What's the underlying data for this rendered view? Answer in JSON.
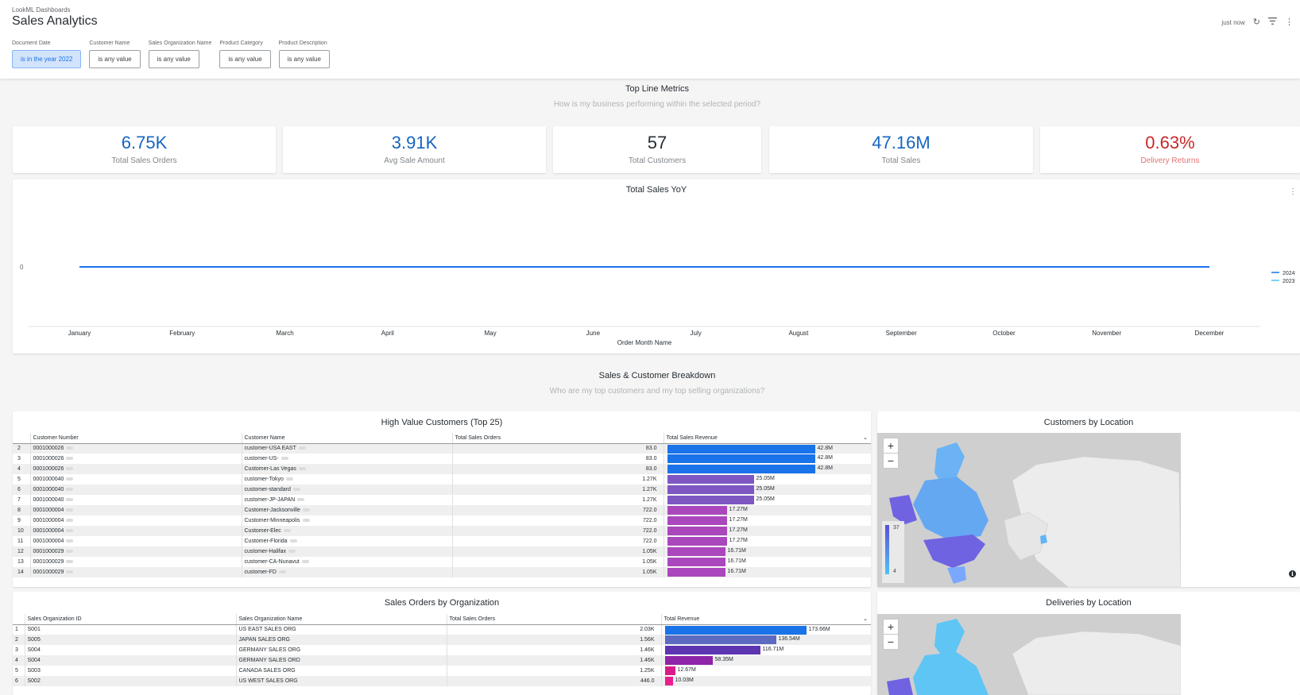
{
  "header": {
    "folder": "LookML Dashboards",
    "title": "Sales Analytics",
    "last_run": "just now",
    "refresh_icon": "refresh-icon",
    "filter_icon": "filter-icon",
    "menu_icon": "more-vert-icon"
  },
  "filters": [
    {
      "label": "Document Date",
      "value": "is in the year 2022",
      "active": true
    },
    {
      "label": "Customer Name",
      "value": "is any value",
      "active": false
    },
    {
      "label": "Sales Organization Name",
      "value": "is any value",
      "active": false
    },
    {
      "label": "Product Category",
      "value": "is any value",
      "active": false
    },
    {
      "label": "Product Description",
      "value": "is any value",
      "active": false
    }
  ],
  "sections": {
    "top_line": {
      "title": "Top Line Metrics",
      "subtitle": "How is my business performing within the selected period?"
    },
    "breakdown": {
      "title": "Sales & Customer Breakdown",
      "subtitle": "Who are my top customers and my top selling organizations?"
    }
  },
  "kpis": [
    {
      "value": "6.75K",
      "label": "Total Sales Orders",
      "style": "blue"
    },
    {
      "value": "3.91K",
      "label": "Avg Sale Amount",
      "style": "blue"
    },
    {
      "value": "57",
      "label": "Total Customers",
      "style": "dark"
    },
    {
      "value": "47.16M",
      "label": "Total Sales",
      "style": "blue"
    },
    {
      "value": "0.63%",
      "label": "Delivery Returns",
      "style": "red"
    }
  ],
  "yoy_chart": {
    "title": "Total Sales YoY",
    "xlabel": "Order Month Name",
    "y_tick": "0",
    "chart_data": {
      "type": "line",
      "categories": [
        "January",
        "February",
        "March",
        "April",
        "May",
        "June",
        "July",
        "August",
        "September",
        "October",
        "November",
        "December"
      ],
      "series": [
        {
          "name": "2024",
          "values": [
            0,
            0,
            0,
            0,
            0,
            0,
            0,
            0,
            0,
            0,
            0,
            0
          ],
          "color": "#1a73e8"
        },
        {
          "name": "2023",
          "values": [
            0,
            0,
            0,
            0,
            0,
            0,
            0,
            0,
            0,
            0,
            0,
            0
          ],
          "color": "#4fc3f7"
        }
      ],
      "title": "Total Sales YoY",
      "xlabel": "Order Month Name",
      "ylabel": "",
      "legend": "right"
    }
  },
  "customers_table": {
    "title": "High Value Customers (Top 25)",
    "columns": [
      "Customer Number",
      "Customer Name",
      "Total Sales Orders",
      "Total Sales Revenue"
    ],
    "sort_icon": "chevron-down-icon",
    "rows": [
      {
        "idx": "2",
        "number": "0001000026",
        "name": "customer-USA EAST",
        "orders": "83.0",
        "revenue": "42.8M",
        "frac": 1.0,
        "color": "#1a73e8"
      },
      {
        "idx": "3",
        "number": "0001000026",
        "name": "customer-US-",
        "orders": "83.0",
        "revenue": "42.8M",
        "frac": 1.0,
        "color": "#1a73e8"
      },
      {
        "idx": "4",
        "number": "0001000026",
        "name": "Customer-Las Vegas",
        "orders": "83.0",
        "revenue": "42.8M",
        "frac": 1.0,
        "color": "#1a73e8"
      },
      {
        "idx": "5",
        "number": "0001000040",
        "name": "customer-Tokyo",
        "orders": "1.27K",
        "revenue": "25.05M",
        "frac": 0.585,
        "color": "#7e57c2"
      },
      {
        "idx": "6",
        "number": "0001000040",
        "name": "customer-standard",
        "orders": "1.27K",
        "revenue": "25.05M",
        "frac": 0.585,
        "color": "#7e57c2"
      },
      {
        "idx": "7",
        "number": "0001000040",
        "name": "customer-JP-JAPAN",
        "orders": "1.27K",
        "revenue": "25.05M",
        "frac": 0.585,
        "color": "#7e57c2"
      },
      {
        "idx": "8",
        "number": "0001000004",
        "name": "Customer-Jacksonville",
        "orders": "722.0",
        "revenue": "17.27M",
        "frac": 0.403,
        "color": "#ab47bc"
      },
      {
        "idx": "9",
        "number": "0001000004",
        "name": "Customer-Minneapolis",
        "orders": "722.0",
        "revenue": "17.27M",
        "frac": 0.403,
        "color": "#ab47bc"
      },
      {
        "idx": "10",
        "number": "0001000004",
        "name": "Customer-Elec",
        "orders": "722.0",
        "revenue": "17.27M",
        "frac": 0.403,
        "color": "#ab47bc"
      },
      {
        "idx": "11",
        "number": "0001000004",
        "name": "Customer-Florida",
        "orders": "722.0",
        "revenue": "17.27M",
        "frac": 0.403,
        "color": "#ab47bc"
      },
      {
        "idx": "12",
        "number": "0001000029",
        "name": "customer-Halifax",
        "orders": "1.05K",
        "revenue": "16.71M",
        "frac": 0.39,
        "color": "#ab47bc"
      },
      {
        "idx": "13",
        "number": "0001000029",
        "name": "customer-CA-Nunavut",
        "orders": "1.05K",
        "revenue": "16.71M",
        "frac": 0.39,
        "color": "#ab47bc"
      },
      {
        "idx": "14",
        "number": "0001000029",
        "name": "customer-FD",
        "orders": "1.05K",
        "revenue": "16.71M",
        "frac": 0.39,
        "color": "#ab47bc"
      }
    ]
  },
  "org_table": {
    "title": "Sales Orders by Organization",
    "columns": [
      "Sales Organization ID",
      "Sales Organization Name",
      "Total Sales Orders",
      "Total Revenue"
    ],
    "sort_icon": "chevron-down-icon",
    "rows": [
      {
        "idx": "1",
        "id": "S001",
        "name": "US EAST SALES ORG",
        "orders": "2.03K",
        "revenue": "173.66M",
        "frac": 1.0,
        "color": "#1a73e8"
      },
      {
        "idx": "2",
        "id": "S005",
        "name": "JAPAN SALES ORG",
        "orders": "1.56K",
        "revenue": "136.54M",
        "frac": 0.786,
        "color": "#5c6bc0"
      },
      {
        "idx": "3",
        "id": "S004",
        "name": "GERMANY SALES ORG",
        "orders": "1.46K",
        "revenue": "116.71M",
        "frac": 0.672,
        "color": "#5e35b1"
      },
      {
        "idx": "4",
        "id": "S004",
        "name": "GERMANY SALES ORD",
        "orders": "1.46K",
        "revenue": "58.35M",
        "frac": 0.336,
        "color": "#8e24aa"
      },
      {
        "idx": "5",
        "id": "S003",
        "name": "CANADA SALES ORG",
        "orders": "1.25K",
        "revenue": "12.67M",
        "frac": 0.073,
        "color": "#d81b8b"
      },
      {
        "idx": "6",
        "id": "S002",
        "name": "US WEST SALES ORG",
        "orders": "446.0",
        "revenue": "10.03M",
        "frac": 0.058,
        "color": "#e91e8c"
      }
    ]
  },
  "customers_map": {
    "title": "Customers by Location",
    "legend_max": "37",
    "legend_min": "4",
    "zoom_in": "+",
    "zoom_out": "−",
    "info_icon": "info-icon"
  },
  "deliveries_map": {
    "title": "Deliveries by Location",
    "zoom_in": "+",
    "zoom_out": "−"
  }
}
